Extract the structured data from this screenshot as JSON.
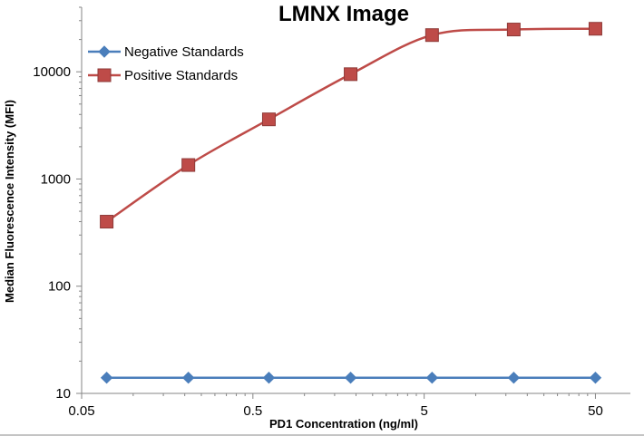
{
  "chart_data": {
    "type": "line",
    "title": "LMNX Image",
    "xlabel": "PD1 Concentration  (ng/ml)",
    "ylabel": "Median Fluorescence Intensity (MFI)",
    "x_scale": "log",
    "y_scale": "log",
    "xlim": [
      0.05,
      80
    ],
    "ylim": [
      10,
      40000
    ],
    "x_ticks": [
      {
        "value": 0.05,
        "label": "0.05"
      },
      {
        "value": 0.5,
        "label": "0.5"
      },
      {
        "value": 5,
        "label": "5"
      },
      {
        "value": 50,
        "label": "50"
      }
    ],
    "y_ticks": [
      {
        "value": 10,
        "label": "10"
      },
      {
        "value": 100,
        "label": "100"
      },
      {
        "value": 1000,
        "label": "1000"
      },
      {
        "value": 10000,
        "label": "10000"
      }
    ],
    "legend_position": "top-left",
    "series": [
      {
        "name": "Negative Standards",
        "color": "#4A7EBB",
        "marker": "diamond",
        "x": [
          0.07,
          0.21,
          0.62,
          1.86,
          5.56,
          16.67,
          50
        ],
        "y": [
          14,
          14,
          14,
          14,
          14,
          14,
          14
        ]
      },
      {
        "name": "Positive Standards",
        "color": "#BE4B48",
        "marker": "square",
        "x": [
          0.07,
          0.21,
          0.62,
          1.86,
          5.56,
          16.67,
          50
        ],
        "y": [
          400,
          1350,
          3600,
          9500,
          22000,
          24800,
          25200
        ]
      }
    ]
  }
}
